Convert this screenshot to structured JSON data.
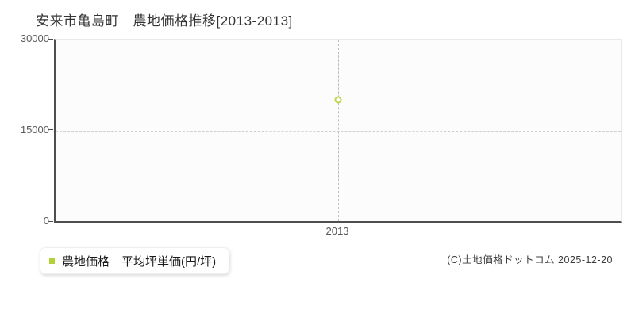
{
  "chart_data": {
    "type": "scatter",
    "title": "安来市亀島町　農地価格推移[2013-2013]",
    "categories": [
      "2013"
    ],
    "series": [
      {
        "name": "農地価格　平均坪単価(円/坪)",
        "values": [
          20000
        ],
        "color": "#b3d235",
        "point_color": "#bcd64a",
        "marker": "hollow-circle"
      }
    ],
    "xlabel": "",
    "ylabel": "",
    "ylim": [
      0,
      30000
    ],
    "yticks": [
      0,
      15000,
      30000
    ],
    "grid": {
      "h_dashed_at": [
        15000
      ],
      "v_dashed_at_categories": [
        "2013"
      ],
      "background": "#fcfcfc"
    },
    "legend_position": "bottom-left"
  },
  "axis": {
    "y_tick_labels": [
      "30000",
      "15000",
      "0"
    ],
    "x_tick_labels": [
      "2013"
    ]
  },
  "legend": {
    "label": "農地価格　平均坪単価(円/坪)"
  },
  "footer": {
    "copyright": "(C)土地価格ドットコム 2025-12-20"
  }
}
